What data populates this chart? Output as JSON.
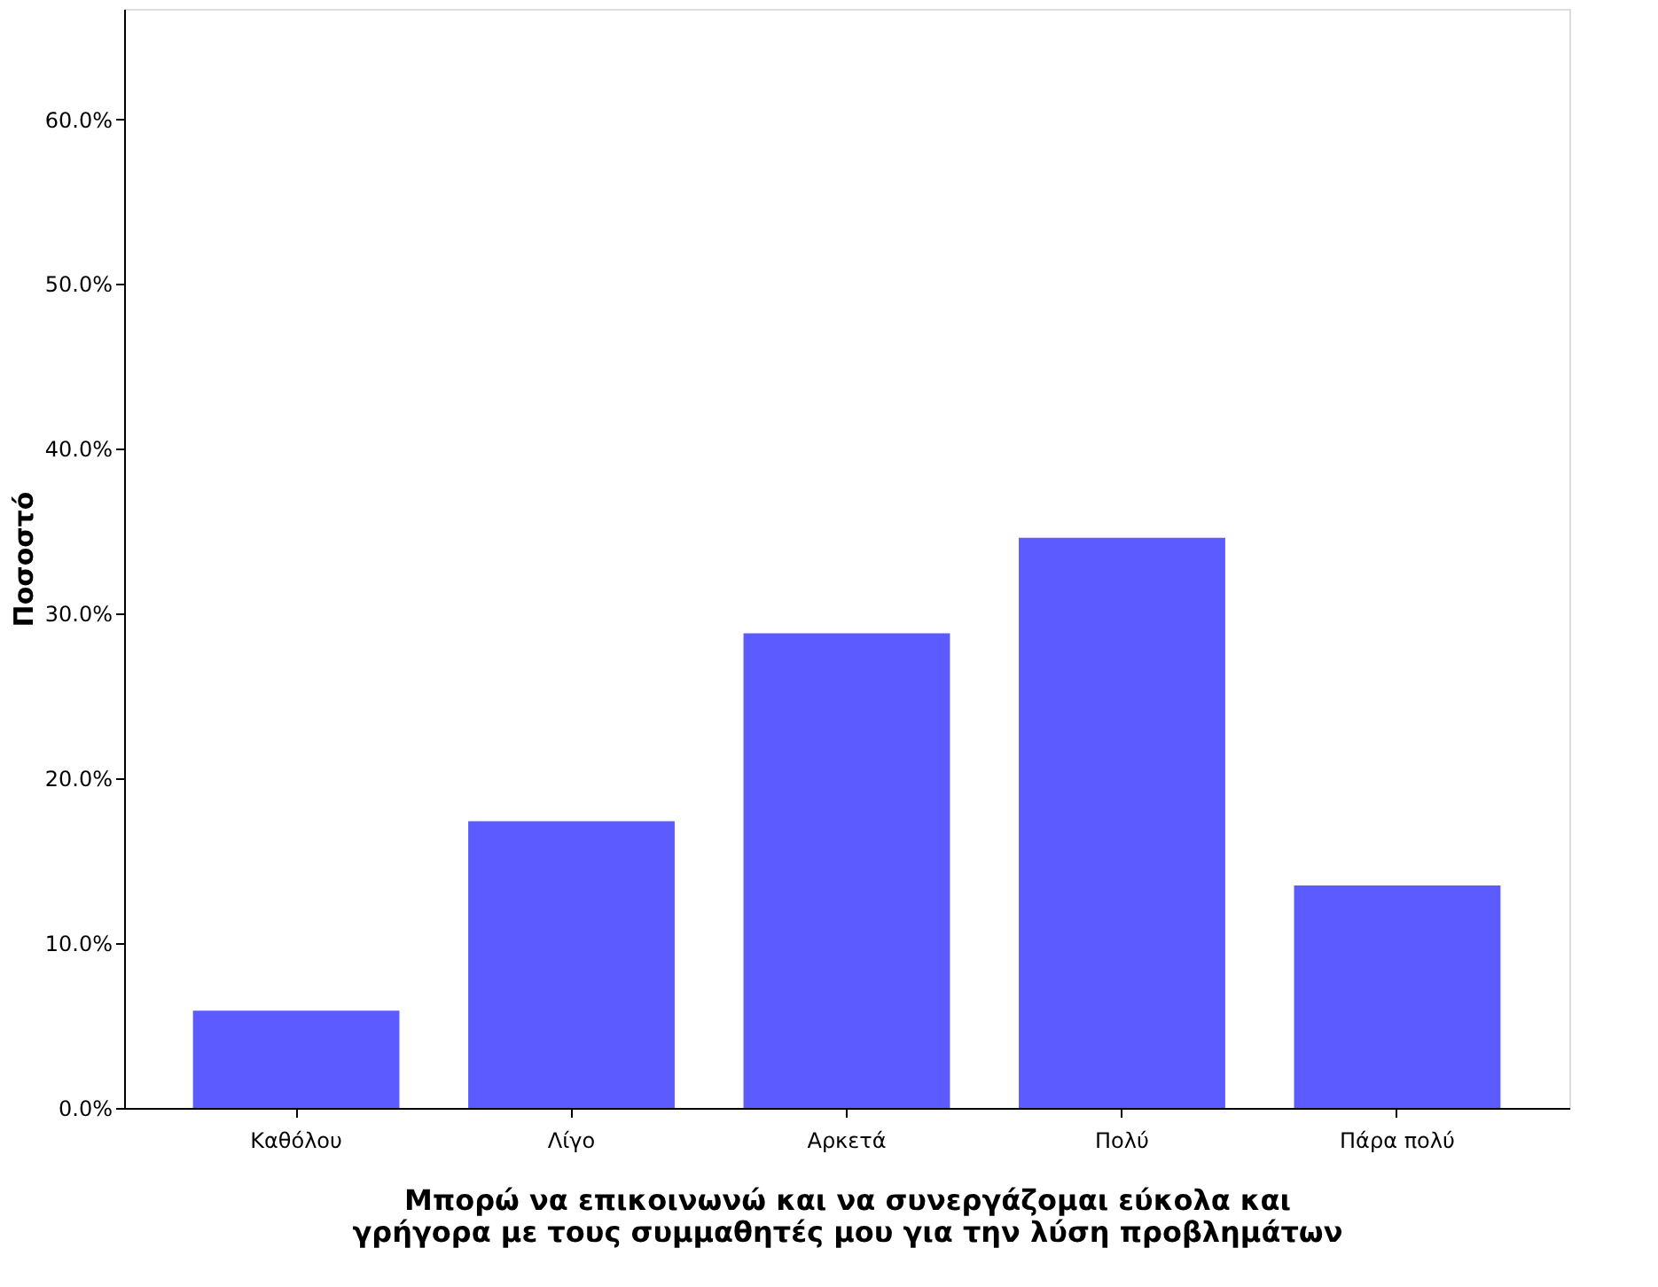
{
  "chart_data": {
    "type": "bar",
    "categories": [
      "Καθόλου",
      "Λίγο",
      "Αρκετά",
      "Πολύ",
      "Πάρα πολύ"
    ],
    "values": [
      5.9,
      17.4,
      28.8,
      34.6,
      13.5
    ],
    "color": "#5b5bff",
    "xlabel": "Μπορώ να επικοινωνώ και να συνεργάζομαι εύκολα και γρήγορα  με τους συμμαθητές μου για την λύση προβλημάτων",
    "ylabel": "Ποσοστό",
    "ylim": [
      0,
      66.7
    ],
    "yticks": [
      {
        "value": 0,
        "label": "0.0%"
      },
      {
        "value": 10,
        "label": "10.0%"
      },
      {
        "value": 20,
        "label": "20.0%"
      },
      {
        "value": 30,
        "label": "30.0%"
      },
      {
        "value": 40,
        "label": "40.0%"
      },
      {
        "value": 50,
        "label": "50.0%"
      },
      {
        "value": 60,
        "label": "60.0%"
      }
    ],
    "grid": false
  }
}
